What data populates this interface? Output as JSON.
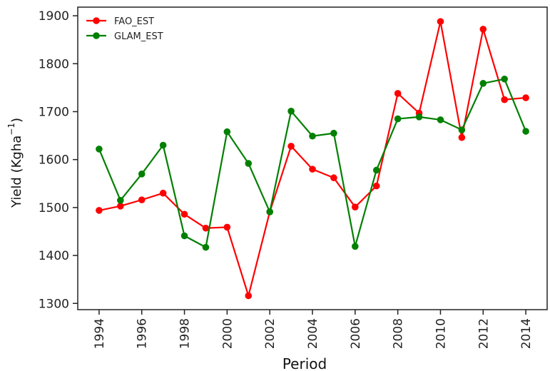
{
  "chart_data": {
    "type": "line",
    "title": "",
    "xlabel": "Period",
    "ylabel": "Yield (Kgha",
    "ylabel_superscript": "−1",
    "ylabel_close": ")",
    "xlim": [
      1993.0,
      2015.0
    ],
    "ylim": [
      1287,
      1918
    ],
    "x": [
      1994,
      1995,
      1996,
      1997,
      1998,
      1999,
      2000,
      2001,
      2002,
      2003,
      2004,
      2005,
      2006,
      2007,
      2008,
      2009,
      2010,
      2011,
      2012,
      2013,
      2014
    ],
    "x_ticks": [
      1994,
      1996,
      1998,
      2000,
      2002,
      2004,
      2006,
      2008,
      2010,
      2012,
      2014
    ],
    "y_ticks": [
      1300,
      1400,
      1500,
      1600,
      1700,
      1800,
      1900
    ],
    "grid": false,
    "legend_position": "top-left",
    "series": [
      {
        "name": "FAO_EST",
        "color": "#ff0000",
        "values": [
          1494,
          1503,
          1516,
          1530,
          1486,
          1457,
          1459,
          1316,
          1491,
          1628,
          1580,
          1562,
          1501,
          1545,
          1738,
          1697,
          1888,
          1646,
          1872,
          1725,
          1729
        ]
      },
      {
        "name": "GLAM_EST",
        "color": "#008000",
        "values": [
          1622,
          1515,
          1570,
          1630,
          1441,
          1417,
          1658,
          1592,
          1491,
          1701,
          1649,
          1655,
          1419,
          1578,
          1685,
          1689,
          1683,
          1662,
          1759,
          1768,
          1659
        ]
      }
    ]
  }
}
